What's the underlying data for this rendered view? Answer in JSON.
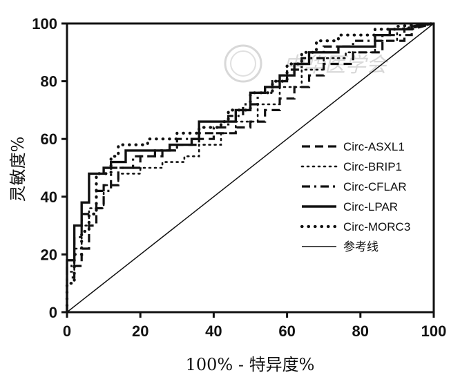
{
  "chart_data": {
    "type": "line",
    "title": "",
    "xlabel": "100% - 特异度%",
    "ylabel": "灵敏度%",
    "xlim": [
      0,
      100
    ],
    "ylim": [
      0,
      100
    ],
    "xticks": [
      "0",
      "20",
      "40",
      "60",
      "80",
      "100"
    ],
    "yticks": [
      "0",
      "20",
      "40",
      "60",
      "80",
      "100"
    ],
    "grid": false,
    "legend_position": "right-middle",
    "watermark": "中华医学会",
    "series": [
      {
        "name": "Circ-ASXL1",
        "style": "dashed",
        "x": [
          0,
          0,
          2,
          2,
          4,
          4,
          6,
          6,
          8,
          8,
          10,
          10,
          14,
          14,
          20,
          20,
          26,
          26,
          30,
          30,
          36,
          36,
          40,
          40,
          46,
          46,
          50,
          50,
          54,
          54,
          58,
          58,
          62,
          62,
          66,
          66,
          70,
          70,
          78,
          78,
          86,
          86,
          92,
          92,
          100
        ],
        "y": [
          0,
          12,
          12,
          16,
          16,
          22,
          22,
          30,
          30,
          36,
          36,
          44,
          44,
          50,
          50,
          54,
          54,
          56,
          56,
          58,
          58,
          60,
          60,
          62,
          62,
          64,
          64,
          66,
          66,
          70,
          70,
          74,
          74,
          78,
          78,
          82,
          82,
          86,
          86,
          90,
          90,
          94,
          94,
          98,
          100
        ]
      },
      {
        "name": "Circ-BRIP1",
        "style": "dotted",
        "x": [
          0,
          0,
          2,
          2,
          4,
          4,
          6,
          6,
          10,
          10,
          14,
          14,
          20,
          20,
          26,
          26,
          32,
          32,
          36,
          36,
          42,
          42,
          46,
          46,
          52,
          52,
          58,
          58,
          64,
          64,
          70,
          70,
          76,
          76,
          84,
          84,
          90,
          90,
          100
        ],
        "y": [
          0,
          14,
          14,
          22,
          22,
          30,
          30,
          36,
          36,
          44,
          44,
          48,
          48,
          50,
          50,
          52,
          52,
          54,
          54,
          58,
          58,
          62,
          62,
          66,
          66,
          72,
          72,
          78,
          78,
          84,
          84,
          88,
          88,
          90,
          90,
          94,
          94,
          98,
          100
        ]
      },
      {
        "name": "Circ-CFLAR",
        "style": "dashdot",
        "x": [
          0,
          0,
          2,
          2,
          4,
          4,
          8,
          8,
          12,
          12,
          18,
          18,
          24,
          24,
          30,
          30,
          36,
          36,
          40,
          40,
          44,
          44,
          48,
          48,
          52,
          52,
          56,
          56,
          60,
          60,
          64,
          64,
          70,
          70,
          78,
          78,
          86,
          86,
          94,
          94,
          100
        ],
        "y": [
          0,
          16,
          16,
          26,
          26,
          34,
          34,
          42,
          42,
          50,
          50,
          54,
          54,
          56,
          56,
          60,
          60,
          62,
          62,
          64,
          64,
          68,
          68,
          72,
          72,
          76,
          76,
          80,
          80,
          84,
          84,
          88,
          88,
          92,
          92,
          94,
          94,
          96,
          96,
          98,
          100
        ]
      },
      {
        "name": "Circ-LPAR",
        "style": "solid-thick",
        "x": [
          0,
          0,
          2,
          2,
          4,
          4,
          6,
          6,
          10,
          10,
          12,
          12,
          16,
          16,
          28,
          28,
          34,
          34,
          36,
          36,
          46,
          46,
          50,
          50,
          54,
          54,
          58,
          58,
          62,
          62,
          66,
          66,
          74,
          74,
          84,
          84,
          88,
          88,
          94,
          94,
          100
        ],
        "y": [
          0,
          18,
          18,
          30,
          30,
          38,
          38,
          48,
          48,
          50,
          50,
          52,
          52,
          56,
          56,
          58,
          58,
          60,
          60,
          66,
          66,
          70,
          70,
          76,
          76,
          78,
          78,
          82,
          82,
          86,
          86,
          90,
          90,
          92,
          92,
          96,
          96,
          98,
          98,
          99,
          100
        ]
      },
      {
        "name": "Circ-MORC3",
        "style": "dotted-thick",
        "x": [
          0,
          0,
          2,
          2,
          4,
          4,
          6,
          6,
          8,
          8,
          12,
          12,
          14,
          14,
          22,
          22,
          30,
          30,
          36,
          36,
          42,
          42,
          44,
          44,
          50,
          50,
          56,
          56,
          60,
          60,
          64,
          64,
          68,
          68,
          74,
          74,
          84,
          84,
          90,
          90,
          100
        ],
        "y": [
          0,
          10,
          10,
          20,
          20,
          28,
          28,
          34,
          34,
          48,
          48,
          54,
          54,
          58,
          58,
          60,
          60,
          62,
          62,
          64,
          64,
          66,
          66,
          70,
          70,
          76,
          76,
          80,
          80,
          86,
          86,
          90,
          90,
          94,
          94,
          96,
          96,
          98,
          98,
          99,
          100
        ]
      },
      {
        "name": "参考线",
        "style": "reference",
        "x": [
          0,
          100
        ],
        "y": [
          0,
          100
        ]
      }
    ]
  }
}
